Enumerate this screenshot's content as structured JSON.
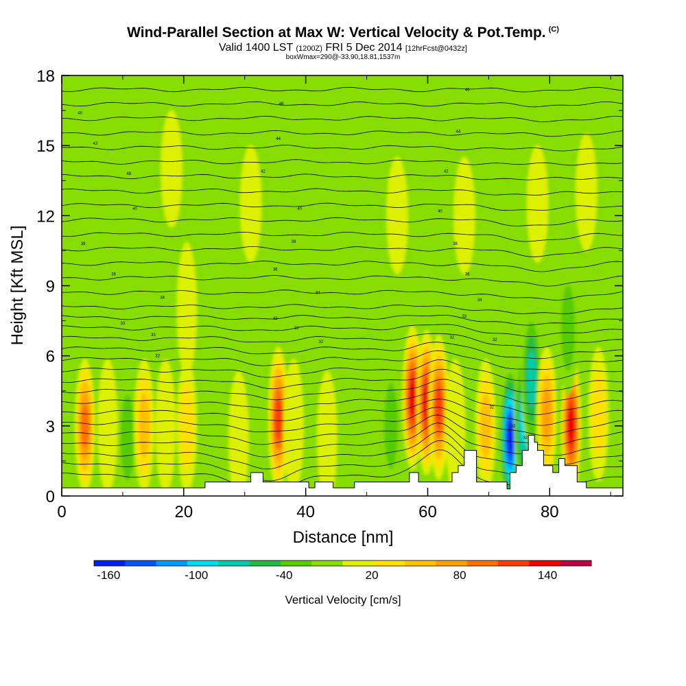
{
  "title": "Wind-Parallel Section at Max W: Vertical Velocity & Pot.Temp.",
  "copyright_mark": "(C)",
  "subtitle": {
    "valid": "Valid 1400 LST",
    "utc": "(1200Z)",
    "date": "FRI 5 Dec 2014",
    "forecast": "[12hrFcst@0432z]"
  },
  "note": "boxWmax=290@-33.90,18.81,1537m",
  "chart_data": {
    "type": "heatmap",
    "xlabel": "Distance [nm]",
    "ylabel": "Height [Kft MSL]",
    "xlim": [
      0,
      92
    ],
    "ylim": [
      0,
      18
    ],
    "xticks": [
      0,
      20,
      40,
      60,
      80
    ],
    "yticks": [
      0,
      3,
      6,
      9,
      12,
      15,
      18
    ],
    "xtick_labels": [
      "0",
      "20",
      "40",
      "60",
      "80"
    ],
    "ytick_labels": [
      "0",
      "3",
      "6",
      "9",
      "12",
      "15",
      "18"
    ],
    "background_value_cms": 0,
    "background_color": "#88dd00",
    "features": [
      {
        "x": 3.8,
        "y": 3.0,
        "value": 100
      },
      {
        "x": 7.5,
        "y": 3.0,
        "value": 20
      },
      {
        "x": 10.8,
        "y": 2.5,
        "value": -40
      },
      {
        "x": 13.5,
        "y": 3.0,
        "value": 60
      },
      {
        "x": 17.0,
        "y": 3.0,
        "value": 20
      },
      {
        "x": 20.5,
        "y": 3.0,
        "value": 40
      },
      {
        "x": 20.5,
        "y": 8.0,
        "value": 20
      },
      {
        "x": 24.5,
        "y": 2.5,
        "value": -20
      },
      {
        "x": 29.0,
        "y": 2.5,
        "value": 20
      },
      {
        "x": 35.5,
        "y": 3.3,
        "value": 120
      },
      {
        "x": 38.0,
        "y": 3.0,
        "value": 20
      },
      {
        "x": 43.5,
        "y": 2.5,
        "value": 20
      },
      {
        "x": 48.5,
        "y": 3.0,
        "value": -20
      },
      {
        "x": 54.0,
        "y": 3.0,
        "value": -40
      },
      {
        "x": 57.5,
        "y": 4.2,
        "value": 140
      },
      {
        "x": 59.8,
        "y": 4.0,
        "value": 140
      },
      {
        "x": 61.8,
        "y": 3.8,
        "value": 120
      },
      {
        "x": 64.5,
        "y": 3.0,
        "value": 20
      },
      {
        "x": 69.5,
        "y": 3.0,
        "value": 60
      },
      {
        "x": 73.5,
        "y": 2.5,
        "value": -160
      },
      {
        "x": 75.8,
        "y": 3.2,
        "value": -100
      },
      {
        "x": 77.0,
        "y": 5.0,
        "value": -80
      },
      {
        "x": 79.5,
        "y": 3.5,
        "value": 80
      },
      {
        "x": 83.5,
        "y": 3.0,
        "value": 140
      },
      {
        "x": 83.0,
        "y": 7.2,
        "value": -40
      },
      {
        "x": 88.0,
        "y": 3.5,
        "value": 40
      },
      {
        "x": 18.0,
        "y": 14.0,
        "value": 20
      },
      {
        "x": 31.0,
        "y": 12.5,
        "value": 20
      },
      {
        "x": 55.0,
        "y": 12.0,
        "value": 20
      },
      {
        "x": 66.0,
        "y": 12.0,
        "value": 20
      },
      {
        "x": 78.0,
        "y": 12.5,
        "value": 20
      },
      {
        "x": 86.0,
        "y": 13.0,
        "value": 20
      }
    ],
    "isentrope_labels": [
      {
        "x": 3,
        "y": 16.4,
        "text": "46"
      },
      {
        "x": 5.5,
        "y": 15.1,
        "text": "43"
      },
      {
        "x": 11,
        "y": 13.8,
        "text": "48"
      },
      {
        "x": 12,
        "y": 12.3,
        "text": "40"
      },
      {
        "x": 3.5,
        "y": 10.8,
        "text": "38"
      },
      {
        "x": 8.5,
        "y": 9.5,
        "text": "36"
      },
      {
        "x": 16.5,
        "y": 8.5,
        "text": "34"
      },
      {
        "x": 10,
        "y": 7.4,
        "text": "33"
      },
      {
        "x": 15,
        "y": 6.9,
        "text": "33"
      },
      {
        "x": 15.7,
        "y": 6.0,
        "text": "32"
      },
      {
        "x": 35,
        "y": 7.6,
        "text": "32"
      },
      {
        "x": 38.5,
        "y": 7.2,
        "text": "32"
      },
      {
        "x": 36,
        "y": 16.8,
        "text": "46"
      },
      {
        "x": 35.5,
        "y": 15.3,
        "text": "44"
      },
      {
        "x": 33,
        "y": 13.9,
        "text": "42"
      },
      {
        "x": 39,
        "y": 12.3,
        "text": "40"
      },
      {
        "x": 38,
        "y": 10.9,
        "text": "38"
      },
      {
        "x": 35,
        "y": 9.7,
        "text": "36"
      },
      {
        "x": 42,
        "y": 8.7,
        "text": "34"
      },
      {
        "x": 42.5,
        "y": 6.6,
        "text": "32"
      },
      {
        "x": 66.5,
        "y": 17.4,
        "text": "46"
      },
      {
        "x": 65,
        "y": 15.6,
        "text": "44"
      },
      {
        "x": 63,
        "y": 13.9,
        "text": "42"
      },
      {
        "x": 62,
        "y": 12.2,
        "text": "40"
      },
      {
        "x": 64.5,
        "y": 10.8,
        "text": "38"
      },
      {
        "x": 66.5,
        "y": 9.5,
        "text": "36"
      },
      {
        "x": 68.5,
        "y": 8.4,
        "text": "34"
      },
      {
        "x": 66,
        "y": 7.7,
        "text": "33"
      },
      {
        "x": 64,
        "y": 6.8,
        "text": "32"
      },
      {
        "x": 71,
        "y": 6.7,
        "text": "32"
      },
      {
        "x": 70.5,
        "y": 3.8,
        "text": "32"
      },
      {
        "x": 74,
        "y": 3.0,
        "text": "32"
      },
      {
        "x": 76,
        "y": 2.5,
        "text": "32"
      }
    ],
    "terrain_top_kft": [
      [
        0,
        0.35
      ],
      [
        23.5,
        0.35
      ],
      [
        23.5,
        0.6
      ],
      [
        31,
        0.6
      ],
      [
        31,
        1.0
      ],
      [
        33,
        1.0
      ],
      [
        33,
        0.6
      ],
      [
        40.5,
        0.6
      ],
      [
        40.5,
        0.35
      ],
      [
        41.5,
        0.35
      ],
      [
        41.5,
        0.6
      ],
      [
        44.5,
        0.6
      ],
      [
        44.5,
        0.35
      ],
      [
        48,
        0.35
      ],
      [
        48,
        0.6
      ],
      [
        57,
        0.6
      ],
      [
        57,
        1.0
      ],
      [
        58.5,
        1.0
      ],
      [
        58.5,
        0.6
      ],
      [
        64,
        0.6
      ],
      [
        64,
        1.0
      ],
      [
        65,
        1.0
      ],
      [
        65,
        1.3
      ],
      [
        66,
        1.3
      ],
      [
        66,
        1.95
      ],
      [
        68,
        1.95
      ],
      [
        68,
        0.6
      ],
      [
        73,
        0.6
      ],
      [
        73,
        0.3
      ],
      [
        73.5,
        0.3
      ],
      [
        73.5,
        1.0
      ],
      [
        74.5,
        1.0
      ],
      [
        74.5,
        1.3
      ],
      [
        75.5,
        1.3
      ],
      [
        75.5,
        1.95
      ],
      [
        76.5,
        1.95
      ],
      [
        76.5,
        2.6
      ],
      [
        77.5,
        2.6
      ],
      [
        77.5,
        2.3
      ],
      [
        78,
        2.3
      ],
      [
        78,
        1.95
      ],
      [
        79,
        1.95
      ],
      [
        79,
        1.3
      ],
      [
        80.5,
        1.3
      ],
      [
        80.5,
        1.0
      ],
      [
        81.5,
        1.0
      ],
      [
        81.5,
        1.6
      ],
      [
        82.5,
        1.6
      ],
      [
        82.5,
        1.3
      ],
      [
        84.5,
        1.3
      ],
      [
        84.5,
        0.6
      ],
      [
        86,
        0.6
      ],
      [
        86,
        0.35
      ],
      [
        92,
        0.35
      ]
    ],
    "colorbar": {
      "label": "Vertical Velocity [cm/s]",
      "range": [
        -170,
        170
      ],
      "tick_values": [
        -160,
        -100,
        -40,
        20,
        80,
        140
      ],
      "tick_labels": [
        "-160",
        "-100",
        "-40",
        "20",
        "80",
        "140"
      ],
      "colors": [
        "#0022ee",
        "#0055ff",
        "#0099ff",
        "#00ddee",
        "#00ccaa",
        "#22bb44",
        "#55cc00",
        "#88dd00",
        "#ddf000",
        "#ffe000",
        "#ffc000",
        "#ffa000",
        "#ff7000",
        "#ff3c00",
        "#ee0000",
        "#bb0044"
      ]
    }
  }
}
